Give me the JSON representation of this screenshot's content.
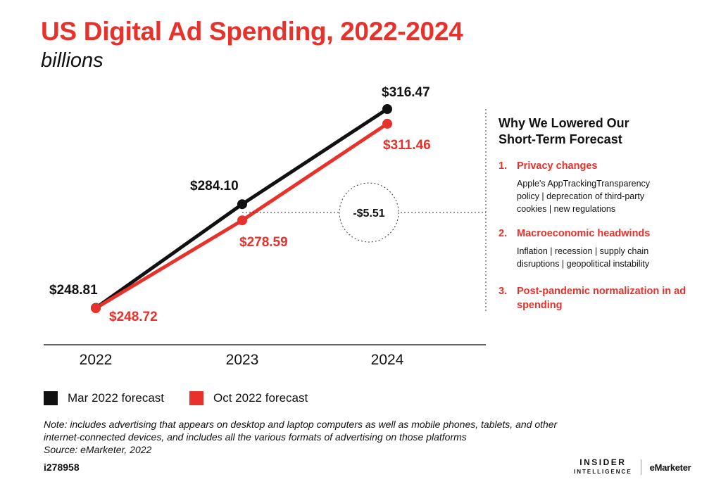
{
  "title": "US Digital Ad Spending, 2022-2024",
  "subtitle": "billions",
  "chart_data": {
    "type": "line",
    "title": "US Digital Ad Spending, 2022-2024",
    "ylabel": "billions",
    "categories": [
      "2022",
      "2023",
      "2024"
    ],
    "ylim": [
      240,
      320
    ],
    "series": [
      {
        "name": "Mar 2022 forecast",
        "color": "#111111",
        "values": [
          248.81,
          284.1,
          316.47
        ],
        "labels": [
          "$248.81",
          "$284.10",
          "$316.47"
        ]
      },
      {
        "name": "Oct 2022 forecast",
        "color": "#e8312a",
        "values": [
          248.72,
          278.59,
          311.46
        ],
        "labels": [
          "$248.72",
          "$278.59",
          "$311.46"
        ]
      }
    ],
    "annotation": {
      "text": "-$5.51",
      "category": "2023"
    }
  },
  "panel": {
    "title": "Why We Lowered Our Short-Term Forecast",
    "reasons": [
      {
        "num": "1.",
        "head": "Privacy changes",
        "detail": "Apple's AppTrackingTransparency policy | deprecation of third-party cookies | new regulations"
      },
      {
        "num": "2.",
        "head": "Macroeconomic headwinds",
        "detail": "Inflation | recession | supply chain disruptions | geopolitical instability"
      },
      {
        "num": "3.",
        "head": "Post-pandemic normalization in ad spending",
        "detail": ""
      }
    ]
  },
  "legend": [
    {
      "label": "Mar 2022 forecast",
      "color": "#111111"
    },
    {
      "label": "Oct 2022 forecast",
      "color": "#e8312a"
    }
  ],
  "note": "Note: includes advertising that appears on desktop and laptop computers as well as mobile phones, tablets, and other internet-connected devices, and includes all the various formats of advertising on those platforms",
  "source": "Source: eMarketer, 2022",
  "chart_id": "i278958",
  "brand": {
    "insider": "INSIDER",
    "intelligence": "INTELLIGENCE",
    "emarketer": "eMarketer"
  }
}
